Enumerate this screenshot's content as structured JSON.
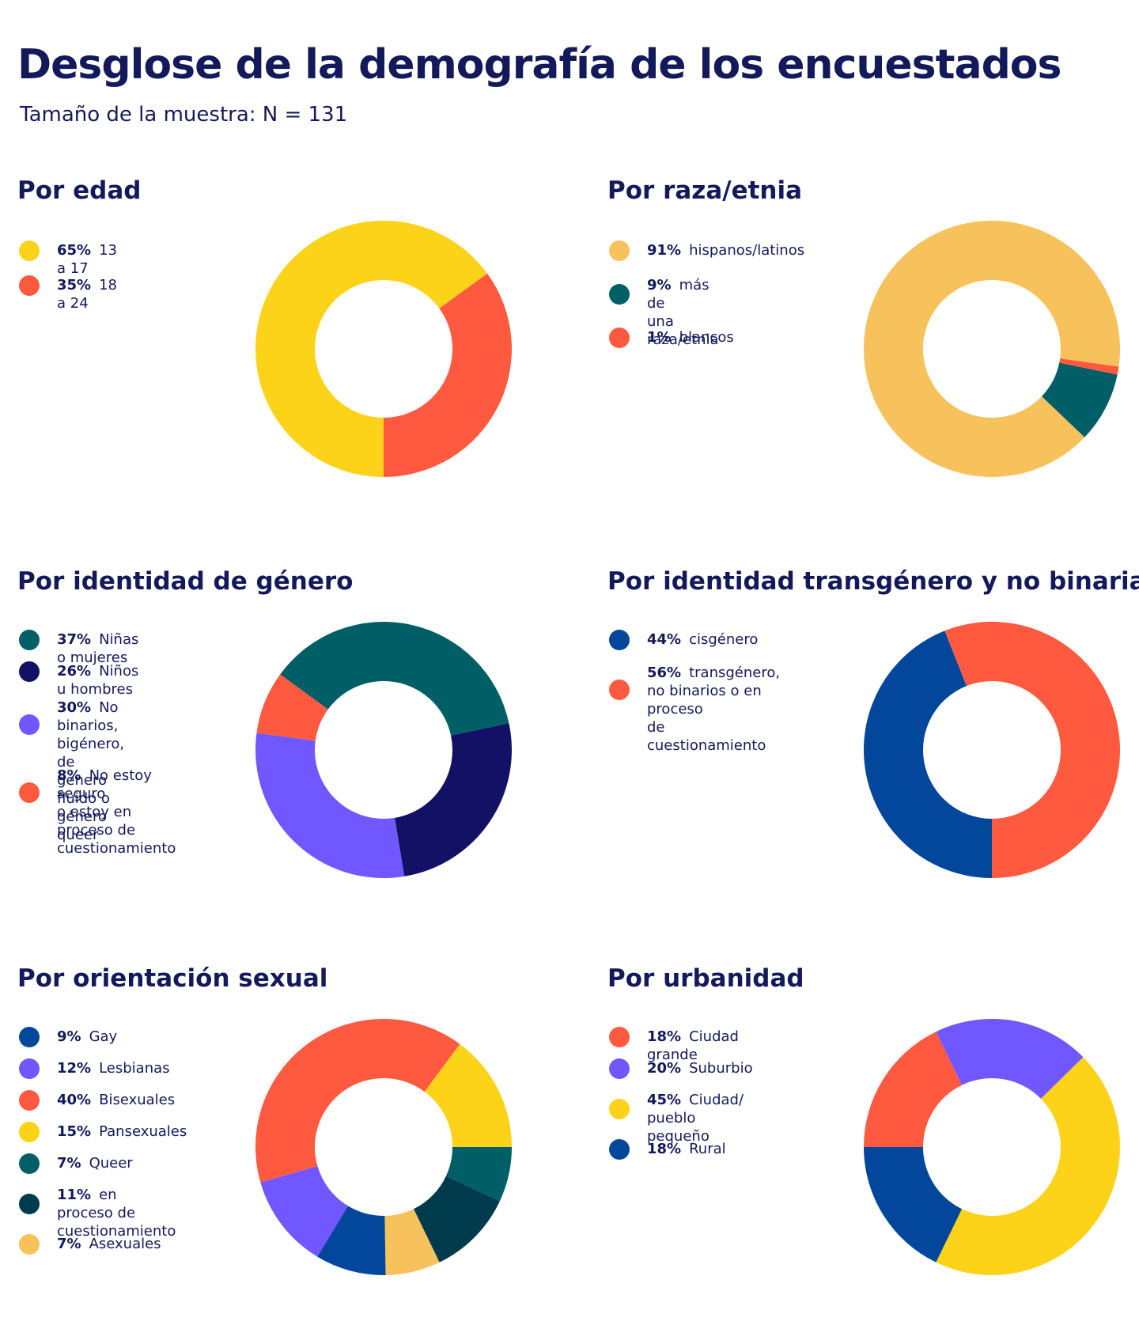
{
  "header": {
    "title": "Desglose de la demografía de los encuestados",
    "subtitle": "Tamaño de la muestra: N = 131"
  },
  "chart_data": [
    {
      "type": "pie",
      "variant": "donut",
      "title": "Por edad",
      "slices": [
        {
          "pct_label": "65%",
          "label": "13 a 17",
          "value": 65,
          "color": "#FDD319"
        },
        {
          "pct_label": "35%",
          "label": "18 a 24",
          "value": 35,
          "color": "#FF5A3F"
        }
      ]
    },
    {
      "type": "pie",
      "variant": "donut",
      "title": "Por raza/etnia",
      "slices": [
        {
          "pct_label": "91%",
          "label": "hispanos/latinos",
          "value": 91,
          "color": "#F7C25B"
        },
        {
          "pct_label": "9%",
          "label": "más de\nuna raza/etnia",
          "value": 9,
          "color": "#005F66"
        },
        {
          "pct_label": "1%",
          "label": "blancos",
          "value": 1,
          "color": "#FF5A3F"
        }
      ]
    },
    {
      "type": "pie",
      "variant": "donut",
      "title": "Por identidad de género",
      "slices": [
        {
          "pct_label": "37%",
          "label": "Niñas o mujeres",
          "value": 37,
          "color": "#005F66"
        },
        {
          "pct_label": "26%",
          "label": "Niños u hombres",
          "value": 26,
          "color": "#131165"
        },
        {
          "pct_label": "30%",
          "label": "No binarios,\nbigénero, de género\nfluido o género queer",
          "value": 30,
          "color": "#7057FF"
        },
        {
          "pct_label": "8%",
          "label": "No estoy seguro\no estoy en proceso de\ncuestionamiento",
          "value": 8,
          "color": "#FF5A3F"
        }
      ]
    },
    {
      "type": "pie",
      "variant": "donut",
      "title": "Por identidad transgénero y no binaria",
      "slices": [
        {
          "pct_label": "44%",
          "label": "cisgénero",
          "value": 44,
          "color": "#02479C"
        },
        {
          "pct_label": "56%",
          "label": "transgénero,\nno binarios o en proceso\nde cuestionamiento",
          "value": 56,
          "color": "#FF5A3F"
        }
      ]
    },
    {
      "type": "pie",
      "variant": "donut",
      "title": "Por orientación sexual",
      "slices": [
        {
          "pct_label": "9%",
          "label": "Gay",
          "value": 9,
          "color": "#02479C"
        },
        {
          "pct_label": "12%",
          "label": "Lesbianas",
          "value": 12,
          "color": "#7057FF"
        },
        {
          "pct_label": "40%",
          "label": "Bisexuales",
          "value": 40,
          "color": "#FF5A3F"
        },
        {
          "pct_label": "15%",
          "label": "Pansexuales",
          "value": 15,
          "color": "#FDD319"
        },
        {
          "pct_label": "7%",
          "label": "Queer",
          "value": 7,
          "color": "#005F66"
        },
        {
          "pct_label": "11%",
          "label": "en proceso de\ncuestionamiento",
          "value": 11,
          "color": "#003A4D"
        },
        {
          "pct_label": "7%",
          "label": "Asexuales",
          "value": 7,
          "color": "#F7C25B"
        }
      ]
    },
    {
      "type": "pie",
      "variant": "donut",
      "title": "Por urbanidad",
      "slices": [
        {
          "pct_label": "18%",
          "label": "Ciudad grande",
          "value": 18,
          "color": "#FF5A3F"
        },
        {
          "pct_label": "20%",
          "label": "Suburbio",
          "value": 20,
          "color": "#7057FF"
        },
        {
          "pct_label": "45%",
          "label": "Ciudad/\npueblo pequeño",
          "value": 45,
          "color": "#FDD319"
        },
        {
          "pct_label": "18%",
          "label": "Rural",
          "value": 18,
          "color": "#02479C"
        }
      ]
    }
  ]
}
